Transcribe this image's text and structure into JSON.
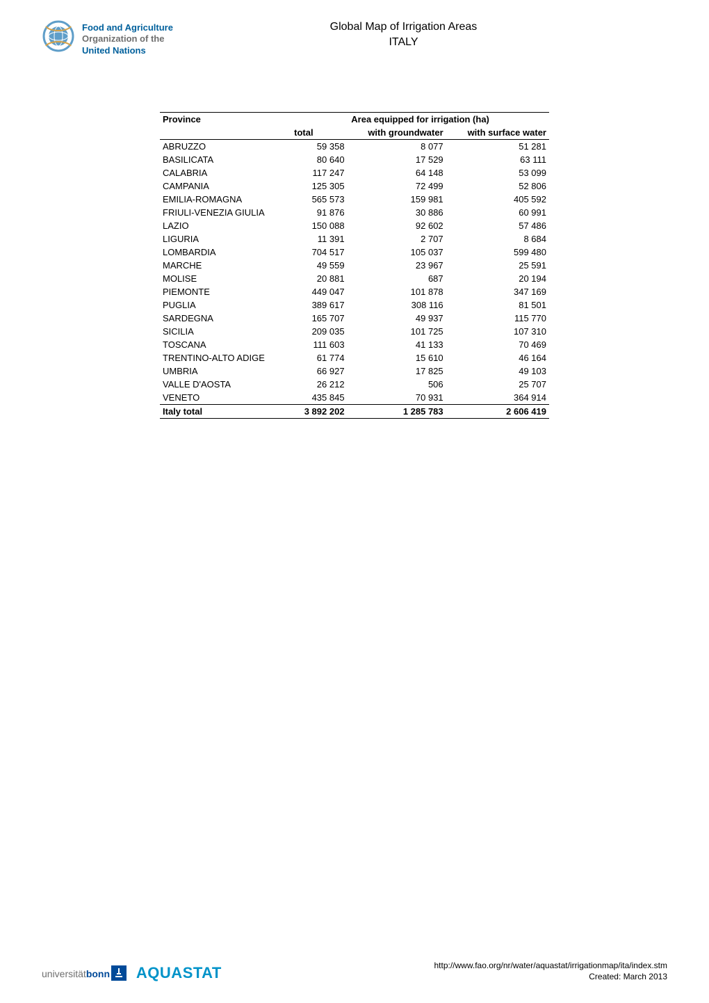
{
  "header": {
    "fao_line1": "Food and Agriculture",
    "fao_line2": "Organization of the",
    "fao_line3": "United Nations",
    "title_line1": "Global Map of Irrigation Areas",
    "title_line2": "ITALY"
  },
  "table": {
    "col_province": "Province",
    "col_area_span": "Area equipped for irrigation (ha)",
    "col_total": "total",
    "col_gw": "with groundwater",
    "col_sw": "with surface water",
    "rows": [
      {
        "p": "ABRUZZO",
        "t": "59 358",
        "g": "8 077",
        "s": "51 281"
      },
      {
        "p": "BASILICATA",
        "t": "80 640",
        "g": "17 529",
        "s": "63 111"
      },
      {
        "p": "CALABRIA",
        "t": "117 247",
        "g": "64 148",
        "s": "53 099"
      },
      {
        "p": "CAMPANIA",
        "t": "125 305",
        "g": "72 499",
        "s": "52 806"
      },
      {
        "p": "EMILIA-ROMAGNA",
        "t": "565 573",
        "g": "159 981",
        "s": "405 592"
      },
      {
        "p": "FRIULI-VENEZIA GIULIA",
        "t": "91 876",
        "g": "30 886",
        "s": "60 991"
      },
      {
        "p": "LAZIO",
        "t": "150 088",
        "g": "92 602",
        "s": "57 486"
      },
      {
        "p": "LIGURIA",
        "t": "11 391",
        "g": "2 707",
        "s": "8 684"
      },
      {
        "p": "LOMBARDIA",
        "t": "704 517",
        "g": "105 037",
        "s": "599 480"
      },
      {
        "p": "MARCHE",
        "t": "49 559",
        "g": "23 967",
        "s": "25 591"
      },
      {
        "p": "MOLISE",
        "t": "20 881",
        "g": "687",
        "s": "20 194"
      },
      {
        "p": "PIEMONTE",
        "t": "449 047",
        "g": "101 878",
        "s": "347 169"
      },
      {
        "p": "PUGLIA",
        "t": "389 617",
        "g": "308 116",
        "s": "81 501"
      },
      {
        "p": "SARDEGNA",
        "t": "165 707",
        "g": "49 937",
        "s": "115 770"
      },
      {
        "p": "SICILIA",
        "t": "209 035",
        "g": "101 725",
        "s": "107 310"
      },
      {
        "p": "TOSCANA",
        "t": "111 603",
        "g": "41 133",
        "s": "70 469"
      },
      {
        "p": "TRENTINO-ALTO ADIGE",
        "t": "61 774",
        "g": "15 610",
        "s": "46 164"
      },
      {
        "p": "UMBRIA",
        "t": "66 927",
        "g": "17 825",
        "s": "49 103"
      },
      {
        "p": "VALLE D'AOSTA",
        "t": "26 212",
        "g": "506",
        "s": "25 707"
      },
      {
        "p": "VENETO",
        "t": "435 845",
        "g": "70 931",
        "s": "364 914"
      }
    ],
    "total_row": {
      "p": "Italy total",
      "t": "3 892 202",
      "g": "1 285 783",
      "s": "2 606 419"
    }
  },
  "footer": {
    "ubonn_u": "universität",
    "ubonn_b": "bonn",
    "aquastat": "AQUASTAT",
    "url": "http://www.fao.org/nr/water/aquastat/irrigationmap/ita/index.stm",
    "created": "Created: March 2013"
  },
  "colors": {
    "fao_blue": "#00609c",
    "fao_gray": "#6f6f6f",
    "aquastat": "#0093c9",
    "ubonn_blue": "#004a99",
    "text": "#000000",
    "bg": "#ffffff"
  }
}
